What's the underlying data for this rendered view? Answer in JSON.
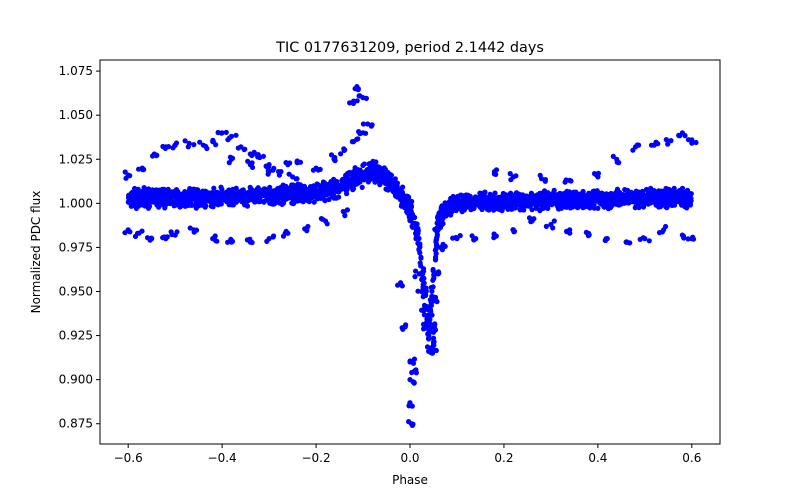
{
  "chart_data": {
    "type": "scatter",
    "title": "TIC 0177631209, period 2.1442 days",
    "xlabel": "Phase",
    "ylabel": "Normalized PDC flux",
    "xlim": [
      -0.66,
      0.66
    ],
    "ylim": [
      0.8635,
      1.0813
    ],
    "xticks": [
      -0.6,
      -0.4,
      -0.2,
      0.0,
      0.2,
      0.4,
      0.6
    ],
    "xtick_labels": [
      "−0.6",
      "−0.4",
      "−0.2",
      "0.0",
      "0.2",
      "0.4",
      "0.6"
    ],
    "yticks": [
      0.875,
      0.9,
      0.925,
      0.95,
      0.975,
      1.0,
      1.025,
      1.05,
      1.075
    ],
    "ytick_labels": [
      "0.875",
      "0.900",
      "0.925",
      "0.950",
      "0.975",
      "1.000",
      "1.025",
      "1.050",
      "1.075"
    ],
    "grid": false,
    "marker_color": "#0000ff",
    "series": [
      {
        "description": "baseline band (folded light curve)",
        "x": [
          -0.6,
          -0.55,
          -0.5,
          -0.45,
          -0.4,
          -0.35,
          -0.3,
          -0.25,
          -0.2,
          -0.15,
          -0.12,
          -0.1,
          -0.08,
          -0.06,
          -0.04,
          -0.02,
          0.0,
          0.01,
          0.02,
          0.03,
          0.04,
          0.05,
          0.06,
          0.08,
          0.1,
          0.15,
          0.2,
          0.25,
          0.3,
          0.35,
          0.4,
          0.45,
          0.5,
          0.55,
          0.6
        ],
        "y_center": [
          1.003,
          1.003,
          1.003,
          1.003,
          1.004,
          1.004,
          1.004,
          1.005,
          1.006,
          1.009,
          1.013,
          1.016,
          1.018,
          1.016,
          1.012,
          1.005,
          0.997,
          0.99,
          0.975,
          0.95,
          0.93,
          0.955,
          0.99,
          0.998,
          1.0,
          1.001,
          1.001,
          1.001,
          1.002,
          1.002,
          1.002,
          1.003,
          1.003,
          1.003,
          1.003
        ],
        "y_spread": [
          0.006,
          0.006,
          0.006,
          0.006,
          0.006,
          0.006,
          0.006,
          0.006,
          0.006,
          0.006,
          0.007,
          0.007,
          0.007,
          0.007,
          0.007,
          0.007,
          0.008,
          0.008,
          0.01,
          0.015,
          0.012,
          0.012,
          0.008,
          0.006,
          0.006,
          0.006,
          0.006,
          0.006,
          0.006,
          0.006,
          0.006,
          0.006,
          0.006,
          0.006,
          0.006
        ]
      },
      {
        "description": "upper trails",
        "points": [
          [
            -0.6,
            1.016
          ],
          [
            -0.57,
            1.02
          ],
          [
            -0.54,
            1.027
          ],
          [
            -0.52,
            1.032
          ],
          [
            -0.5,
            1.033
          ],
          [
            -0.47,
            1.034
          ],
          [
            -0.44,
            1.033
          ],
          [
            -0.42,
            1.035
          ],
          [
            -0.4,
            1.04
          ],
          [
            -0.38,
            1.038
          ],
          [
            -0.36,
            1.032
          ],
          [
            -0.34,
            1.028
          ],
          [
            -0.32,
            1.026
          ],
          [
            -0.3,
            1.022
          ],
          [
            -0.28,
            1.018
          ],
          [
            -0.26,
            1.022
          ],
          [
            -0.24,
            1.024
          ],
          [
            -0.2,
            1.02
          ],
          [
            -0.16,
            1.026
          ],
          [
            -0.14,
            1.03
          ],
          [
            -0.12,
            1.035
          ],
          [
            -0.1,
            1.04
          ],
          [
            -0.09,
            1.045
          ],
          [
            -0.12,
            1.058
          ],
          [
            -0.11,
            1.065
          ],
          [
            -0.1,
            1.06
          ],
          [
            0.18,
            1.018
          ],
          [
            0.22,
            1.015
          ],
          [
            0.28,
            1.014
          ],
          [
            0.34,
            1.013
          ],
          [
            0.4,
            1.015
          ],
          [
            0.44,
            1.025
          ],
          [
            0.48,
            1.032
          ],
          [
            0.52,
            1.033
          ],
          [
            0.55,
            1.035
          ],
          [
            0.58,
            1.04
          ],
          [
            0.6,
            1.036
          ],
          [
            -0.38,
            1.025
          ],
          [
            -0.34,
            1.022
          ],
          [
            -0.3,
            1.018
          ],
          [
            -0.25,
            1.015
          ]
        ]
      },
      {
        "description": "lower trails",
        "points": [
          [
            -0.6,
            0.985
          ],
          [
            -0.58,
            0.983
          ],
          [
            -0.55,
            0.98
          ],
          [
            -0.52,
            0.98
          ],
          [
            -0.5,
            0.982
          ],
          [
            -0.46,
            0.985
          ],
          [
            -0.42,
            0.98
          ],
          [
            -0.38,
            0.978
          ],
          [
            -0.34,
            0.978
          ],
          [
            -0.3,
            0.98
          ],
          [
            -0.26,
            0.983
          ],
          [
            -0.22,
            0.985
          ],
          [
            -0.18,
            0.99
          ],
          [
            -0.14,
            0.995
          ],
          [
            0.06,
            0.985
          ],
          [
            0.1,
            0.98
          ],
          [
            0.14,
            0.98
          ],
          [
            0.18,
            0.982
          ],
          [
            0.22,
            0.985
          ],
          [
            0.26,
            0.99
          ],
          [
            0.3,
            0.988
          ],
          [
            0.34,
            0.985
          ],
          [
            0.38,
            0.983
          ],
          [
            0.42,
            0.98
          ],
          [
            0.46,
            0.978
          ],
          [
            0.5,
            0.98
          ],
          [
            0.54,
            0.985
          ],
          [
            0.58,
            0.982
          ],
          [
            0.6,
            0.98
          ]
        ]
      },
      {
        "description": "eclipse minimum",
        "points": [
          [
            0.02,
            0.96
          ],
          [
            0.025,
            0.95
          ],
          [
            0.03,
            0.94
          ],
          [
            0.035,
            0.93
          ],
          [
            0.04,
            0.925
          ],
          [
            0.045,
            0.918
          ],
          [
            0.048,
            0.915
          ],
          [
            0.05,
            0.92
          ],
          [
            0.052,
            0.93
          ],
          [
            0.055,
            0.945
          ],
          [
            0.06,
            0.96
          ],
          [
            0.065,
            0.975
          ],
          [
            0.0,
            0.91
          ],
          [
            0.0,
            0.9
          ],
          [
            0.005,
            0.885
          ],
          [
            0.003,
            0.875
          ],
          [
            0.01,
            0.905
          ],
          [
            -0.01,
            0.93
          ],
          [
            -0.02,
            0.955
          ]
        ]
      }
    ]
  }
}
